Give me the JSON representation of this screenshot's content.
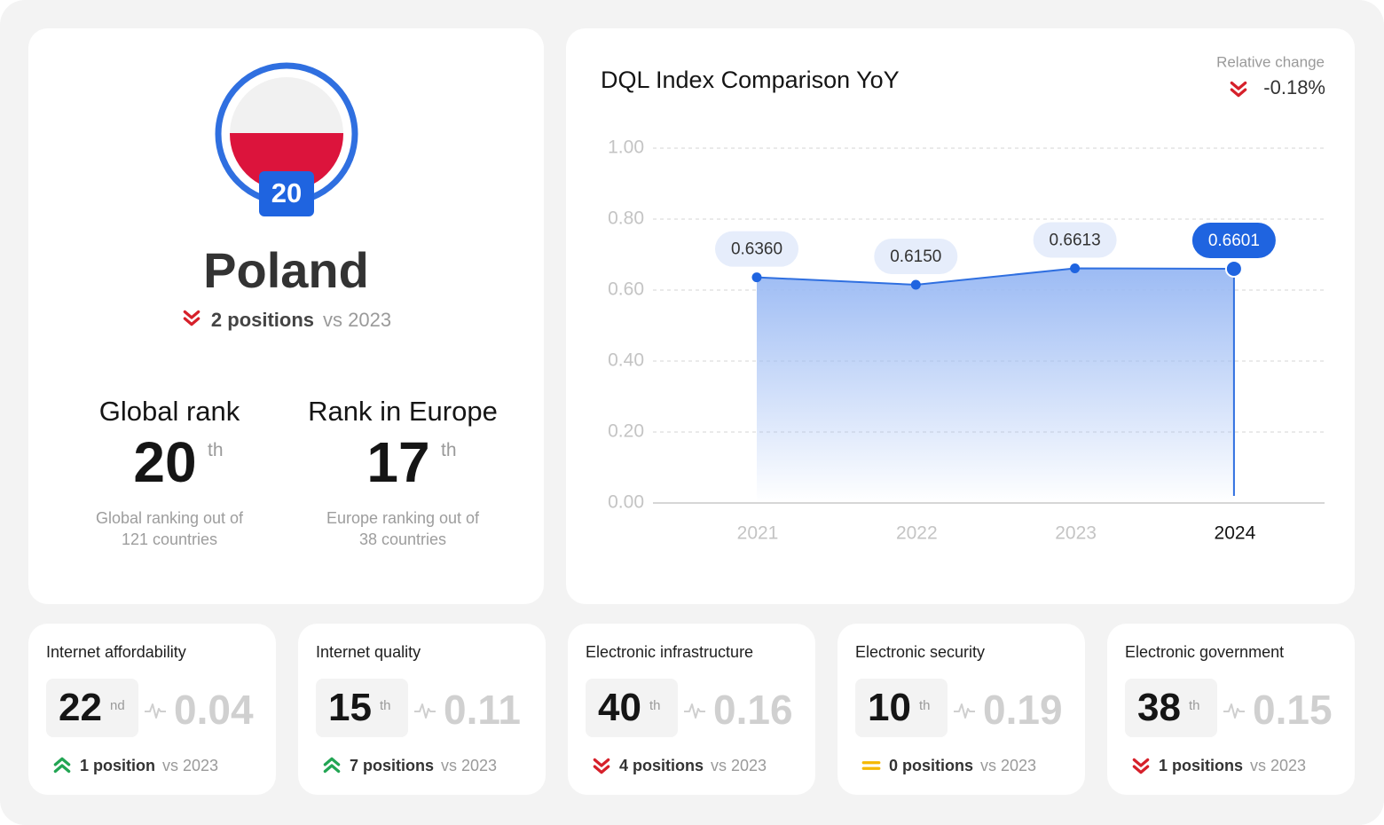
{
  "country": {
    "name": "Poland",
    "change": {
      "direction": "down",
      "text": "2 positions",
      "compare": "vs 2023"
    },
    "ranks": [
      {
        "title": "Global rank",
        "value": 20,
        "suffix": "th",
        "description": "Global ranking out of 121 countries"
      },
      {
        "title": "Rank in Europe",
        "value": 17,
        "suffix": "th",
        "description": "Europe ranking out of 38 countries"
      }
    ]
  },
  "chart_data": {
    "type": "area",
    "title": "DQL Index Comparison YoY",
    "annotation_label": "Relative change",
    "annotation": "-0.18%",
    "annotation_direction": "down",
    "categories": [
      "2021",
      "2022",
      "2023",
      "2024"
    ],
    "values": [
      0.636,
      0.615,
      0.6613,
      0.6601
    ],
    "value_labels": [
      "0.6360",
      "0.6150",
      "0.6613",
      "0.6601"
    ],
    "color": "#2f6fe0",
    "ylim": [
      0,
      1
    ],
    "yticks": [
      {
        "value": 0,
        "label": "0.00"
      },
      {
        "value": 0.2,
        "label": "0.20"
      },
      {
        "value": 0.4,
        "label": "0.40"
      },
      {
        "value": 0.6,
        "label": "0.60"
      },
      {
        "value": 0.8,
        "label": "0.80"
      },
      {
        "value": 1,
        "label": "1.00"
      }
    ],
    "grid": true
  },
  "cards": [
    {
      "title": "Internet affordability",
      "rank": 22,
      "suffix": "nd",
      "score": 0.04,
      "direction": "up",
      "change": "1 position",
      "compare": "vs 2023"
    },
    {
      "title": "Internet quality",
      "rank": 15,
      "suffix": "th",
      "score": 0.11,
      "direction": "up",
      "change": "7 positions",
      "compare": "vs 2023"
    },
    {
      "title": "Electronic infrastructure",
      "rank": 40,
      "suffix": "th",
      "score": 0.16,
      "direction": "down",
      "change": "4 positions",
      "compare": "vs 2023"
    },
    {
      "title": "Electronic security",
      "rank": 10,
      "suffix": "th",
      "score": 0.19,
      "direction": "same",
      "change": "0 positions",
      "compare": "vs 2023"
    },
    {
      "title": "Electronic government",
      "rank": 38,
      "suffix": "th",
      "score": 0.15,
      "direction": "down",
      "change": "1 positions",
      "compare": "vs 2023"
    }
  ]
}
